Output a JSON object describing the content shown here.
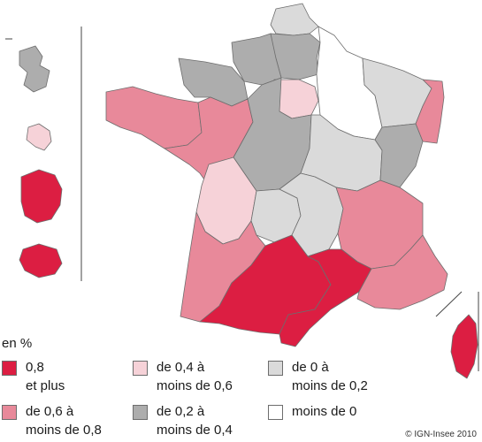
{
  "legend": {
    "unit": "en %",
    "classes": [
      {
        "line1": "0,8",
        "line2": "et plus",
        "color": "#dc1e42"
      },
      {
        "line1": "de 0,6 à",
        "line2": "moins de 0,8",
        "color": "#e8899a"
      },
      {
        "line1": "de 0,4 à",
        "line2": "moins de 0,6",
        "color": "#f6d2d8"
      },
      {
        "line1": "de 0,2 à",
        "line2": "moins de 0,4",
        "color": "#adadad"
      },
      {
        "line1": "de 0 à",
        "line2": "moins de 0,2",
        "color": "#dadada"
      },
      {
        "line1": "moins de 0",
        "line2": "",
        "color": "#ffffff"
      }
    ]
  },
  "credit": "© IGN-Insee 2010"
}
